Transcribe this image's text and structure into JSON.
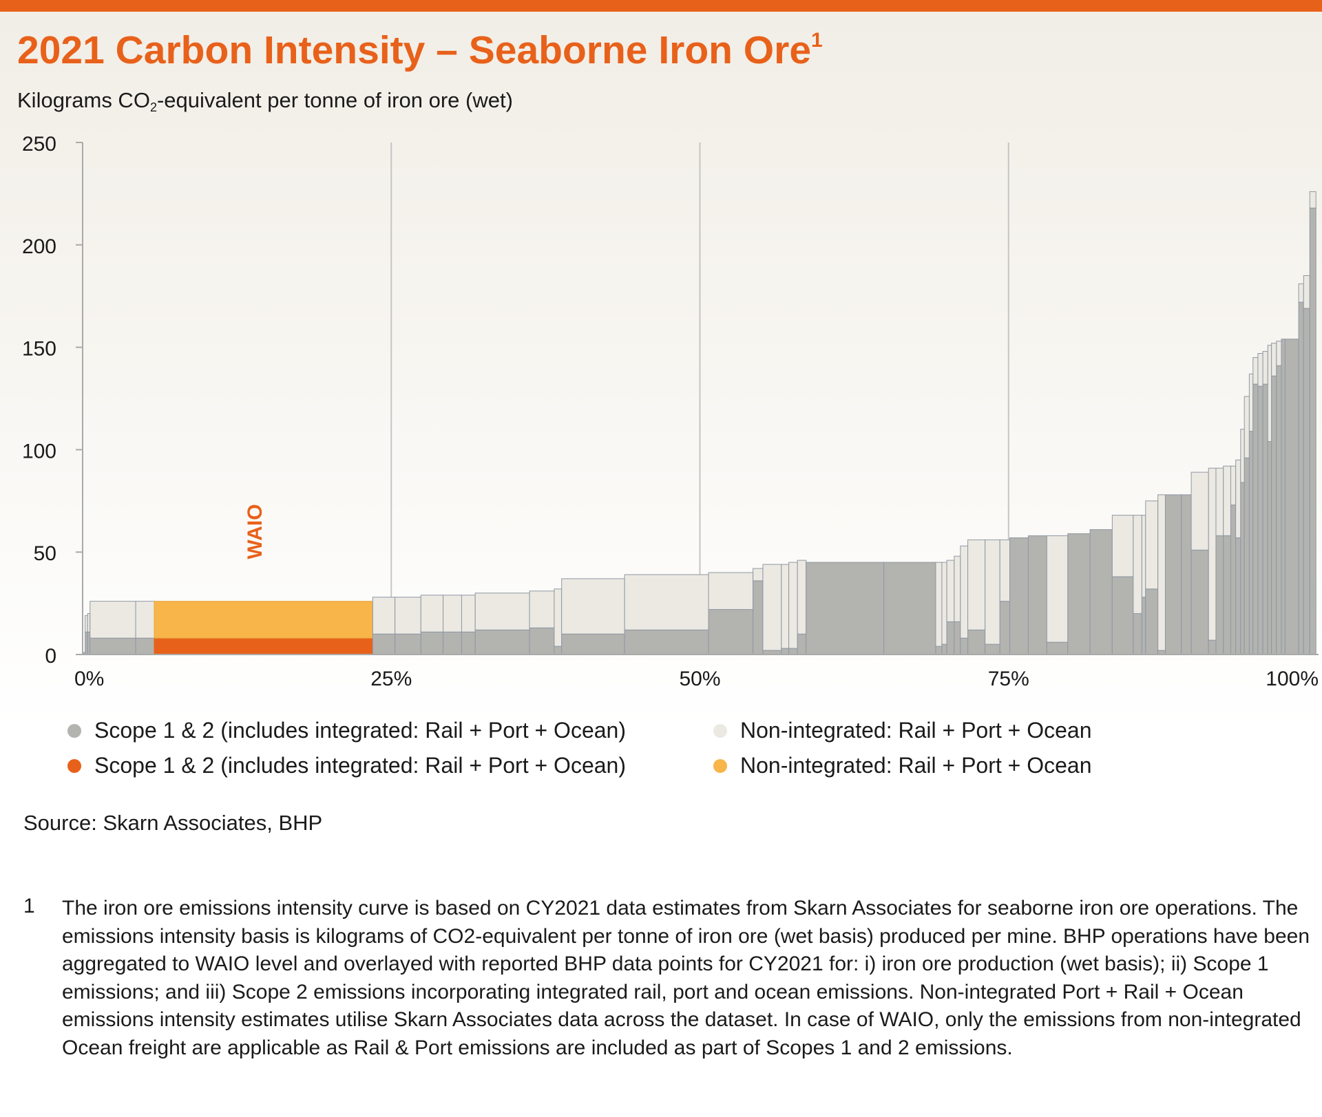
{
  "header": {
    "title": "2021 Carbon Intensity – Seaborne Iron Ore",
    "title_sup": "1",
    "subtitle_pre": "Kilograms CO",
    "subtitle_sub": "2",
    "subtitle_post": "-equivalent per tonne of iron ore (wet)"
  },
  "chart_data": {
    "type": "bar",
    "subtype": "cost-curve (variable-width stacked bars)",
    "title": "2021 Carbon Intensity – Seaborne Iron Ore",
    "ylabel": "Kilograms CO2-equivalent per tonne of iron ore (wet)",
    "xlabel": "",
    "xlim": [
      0,
      100
    ],
    "ylim": [
      0,
      250
    ],
    "yticks": [
      "0",
      "50",
      "100",
      "150",
      "200",
      "250"
    ],
    "xticks": [
      "0%",
      "25%",
      "50%",
      "75%",
      "100%"
    ],
    "xtick_values": [
      0,
      25,
      50,
      75,
      100
    ],
    "grid": "vertical at 25%, 50%, 75%",
    "legend_position": "bottom",
    "colors": {
      "scope": "#b3b3b0",
      "nonint": "#ebe9e2",
      "waio_scope": "#e8611a",
      "waio_nonint": "#f7b54a",
      "edge": "#8f98a3"
    },
    "legend": [
      {
        "label": "Scope 1 & 2 (includes integrated: Rail + Port + Ocean)",
        "color": "#b3b3b0"
      },
      {
        "label": "Non-integrated: Rail + Port + Ocean",
        "color": "#ebe9e2"
      },
      {
        "label": "Scope 1 & 2 (includes integrated: Rail + Port + Ocean)",
        "color": "#e8611a"
      },
      {
        "label": "Non-integrated: Rail + Port + Ocean",
        "color": "#f7b54a"
      }
    ],
    "annotation": {
      "text": "WAIO",
      "x": 14.5,
      "y": 60
    },
    "series_fields": [
      "x_start_pct",
      "x_end_pct",
      "scope_1_2",
      "non_integrated",
      "highlight"
    ],
    "bars": [
      [
        0,
        0.2,
        1,
        0,
        false
      ],
      [
        0.2,
        0.4,
        11,
        8,
        false
      ],
      [
        0.4,
        0.6,
        11,
        9,
        false
      ],
      [
        0.6,
        4.3,
        8,
        18,
        false
      ],
      [
        4.3,
        5.8,
        8,
        18,
        false
      ],
      [
        5.8,
        23.5,
        8,
        18,
        true
      ],
      [
        23.5,
        25.3,
        10,
        18,
        false
      ],
      [
        25.3,
        27.4,
        10,
        18,
        false
      ],
      [
        27.4,
        29.2,
        11,
        18,
        false
      ],
      [
        29.2,
        30.7,
        11,
        18,
        false
      ],
      [
        30.7,
        31.8,
        11,
        18,
        false
      ],
      [
        31.8,
        36.2,
        12,
        18,
        false
      ],
      [
        36.2,
        38.2,
        13,
        18,
        false
      ],
      [
        38.2,
        38.8,
        4,
        28,
        false
      ],
      [
        38.8,
        43.9,
        10,
        27,
        false
      ],
      [
        43.9,
        50.7,
        12,
        27,
        false
      ],
      [
        50.7,
        54.3,
        22,
        18,
        false
      ],
      [
        54.3,
        55.1,
        36,
        6,
        false
      ],
      [
        55.1,
        56.6,
        2,
        42,
        false
      ],
      [
        56.6,
        57.2,
        3,
        41,
        false
      ],
      [
        57.2,
        57.9,
        3,
        42,
        false
      ],
      [
        57.9,
        58.6,
        10,
        36,
        false
      ],
      [
        58.6,
        64.9,
        45,
        0,
        false
      ],
      [
        64.9,
        69.1,
        45,
        0,
        false
      ],
      [
        69.1,
        69.6,
        4,
        41,
        false
      ],
      [
        69.6,
        70.0,
        5,
        40,
        false
      ],
      [
        70.0,
        70.6,
        16,
        30,
        false
      ],
      [
        70.6,
        71.1,
        16,
        32,
        false
      ],
      [
        71.1,
        71.7,
        8,
        45,
        false
      ],
      [
        71.7,
        73.1,
        12,
        44,
        false
      ],
      [
        73.1,
        74.3,
        5,
        51,
        false
      ],
      [
        74.3,
        75.1,
        26,
        30,
        false
      ],
      [
        75.1,
        76.6,
        57,
        0,
        false
      ],
      [
        76.6,
        78.1,
        58,
        0,
        false
      ],
      [
        78.1,
        79.8,
        6,
        52,
        false
      ],
      [
        79.8,
        81.6,
        59,
        0,
        false
      ],
      [
        81.6,
        83.4,
        61,
        0,
        false
      ],
      [
        83.4,
        85.1,
        38,
        30,
        false
      ],
      [
        85.1,
        85.8,
        20,
        48,
        false
      ],
      [
        85.8,
        86.1,
        28,
        40,
        false
      ],
      [
        86.1,
        87.1,
        32,
        43,
        false
      ],
      [
        87.1,
        87.7,
        2,
        76,
        false
      ],
      [
        87.7,
        89.0,
        78,
        0,
        false
      ],
      [
        89.0,
        89.8,
        78,
        0,
        false
      ],
      [
        89.8,
        91.2,
        51,
        38,
        false
      ],
      [
        91.2,
        91.8,
        7,
        84,
        false
      ],
      [
        91.8,
        92.4,
        58,
        33,
        false
      ],
      [
        92.4,
        93.0,
        58,
        34,
        false
      ],
      [
        93.0,
        93.4,
        73,
        19,
        false
      ],
      [
        93.4,
        93.8,
        57,
        38,
        false
      ],
      [
        93.8,
        94.1,
        84,
        26,
        false
      ],
      [
        94.1,
        94.5,
        96,
        30,
        false
      ],
      [
        94.5,
        94.8,
        109,
        28,
        false
      ],
      [
        94.8,
        95.2,
        132,
        13,
        false
      ],
      [
        95.2,
        95.6,
        131,
        16,
        false
      ],
      [
        95.6,
        96.0,
        132,
        16,
        false
      ],
      [
        96.0,
        96.3,
        104,
        47,
        false
      ],
      [
        96.3,
        96.7,
        136,
        16,
        false
      ],
      [
        96.7,
        97.1,
        141,
        12,
        false
      ],
      [
        97.1,
        97.4,
        154,
        0,
        false
      ],
      [
        97.4,
        98.5,
        154,
        0,
        false
      ],
      [
        98.5,
        98.9,
        172,
        9,
        false
      ],
      [
        98.9,
        99.4,
        169,
        16,
        false
      ],
      [
        99.4,
        99.9,
        218,
        8,
        false
      ]
    ]
  },
  "source": "Source: Skarn Associates, BHP",
  "footnote": {
    "number": "1",
    "text": "The iron ore emissions intensity curve is based on CY2021 data estimates from Skarn Associates for seaborne iron ore operations. The emissions intensity basis is kilograms of CO2-equivalent per tonne of iron ore (wet basis) produced per mine. BHP operations have been aggregated to WAIO level and overlayed with reported BHP data points for CY2021 for: i) iron ore production (wet basis); ii) Scope 1 emissions; and iii) Scope 2 emissions incorporating integrated rail, port and ocean emissions. Non-integrated Port + Rail + Ocean emissions intensity estimates utilise Skarn Associates data across the dataset. In case of WAIO, only the emissions from non-integrated Ocean freight are applicable as Rail & Port emissions are included as part of Scopes 1 and 2 emissions."
  }
}
